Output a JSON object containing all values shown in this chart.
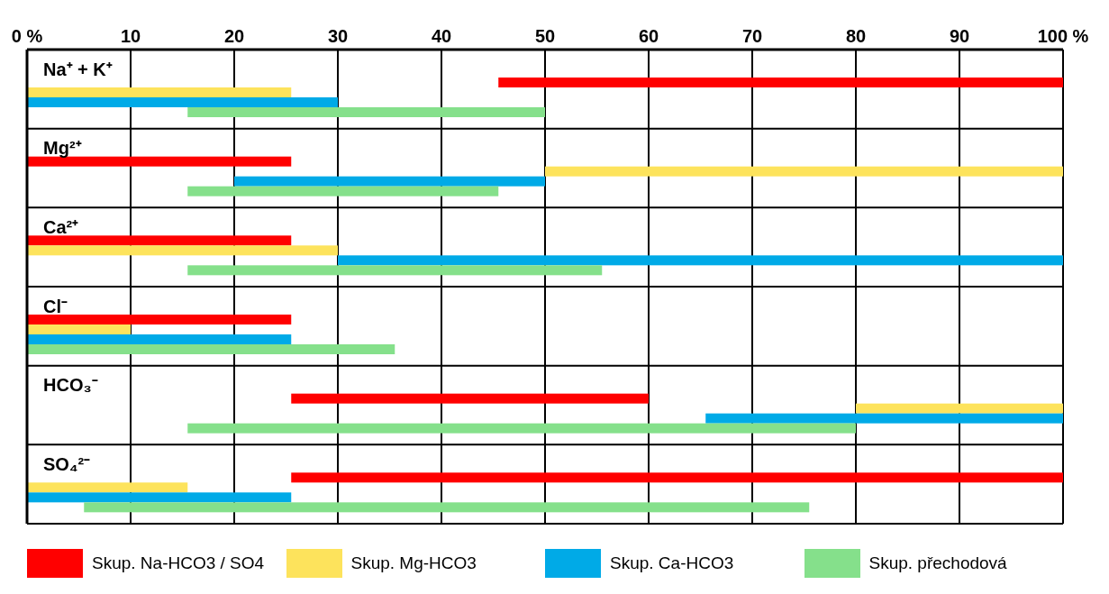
{
  "chart_data": {
    "type": "bar",
    "orientation": "horizontal",
    "categories": [
      "Na⁺ + K⁺",
      "Mg²⁺",
      "Ca²⁺",
      "Cl⁻",
      "HCO₃⁻",
      "SO₄²⁻"
    ],
    "series": [
      {
        "name": "Skup. Na-HCO3 / SO4",
        "color": "#ff0000",
        "base": [
          45.5,
          0,
          0,
          0,
          25.5,
          25.5
        ],
        "values": [
          54.5,
          25.5,
          25.5,
          25.5,
          34.5,
          74.5
        ]
      },
      {
        "name": "Skup. Mg-HCO3",
        "color": "#fde35c",
        "base": [
          0,
          50,
          0,
          0,
          80,
          0
        ],
        "values": [
          25.5,
          50,
          30,
          10,
          20,
          15.5
        ]
      },
      {
        "name": "Skup. Ca-HCO3",
        "color": "#00aae7",
        "base": [
          0,
          20,
          30,
          0,
          65.5,
          0
        ],
        "values": [
          30,
          30,
          70,
          25.5,
          34.5,
          25.5
        ]
      },
      {
        "name": "Skup. přechodová",
        "color": "#85e08b",
        "base": [
          15.5,
          15.5,
          15.5,
          0,
          15.5,
          5.5
        ],
        "values": [
          34.5,
          30,
          40,
          35.5,
          64.5,
          70
        ]
      }
    ],
    "xlim": [
      0,
      100
    ],
    "xticks": [
      {
        "value": 0,
        "label": "0 %"
      },
      10,
      20,
      30,
      40,
      50,
      60,
      70,
      80,
      90,
      {
        "value": 100,
        "label": "100 %"
      }
    ],
    "grid": true,
    "legend": "bottom"
  }
}
